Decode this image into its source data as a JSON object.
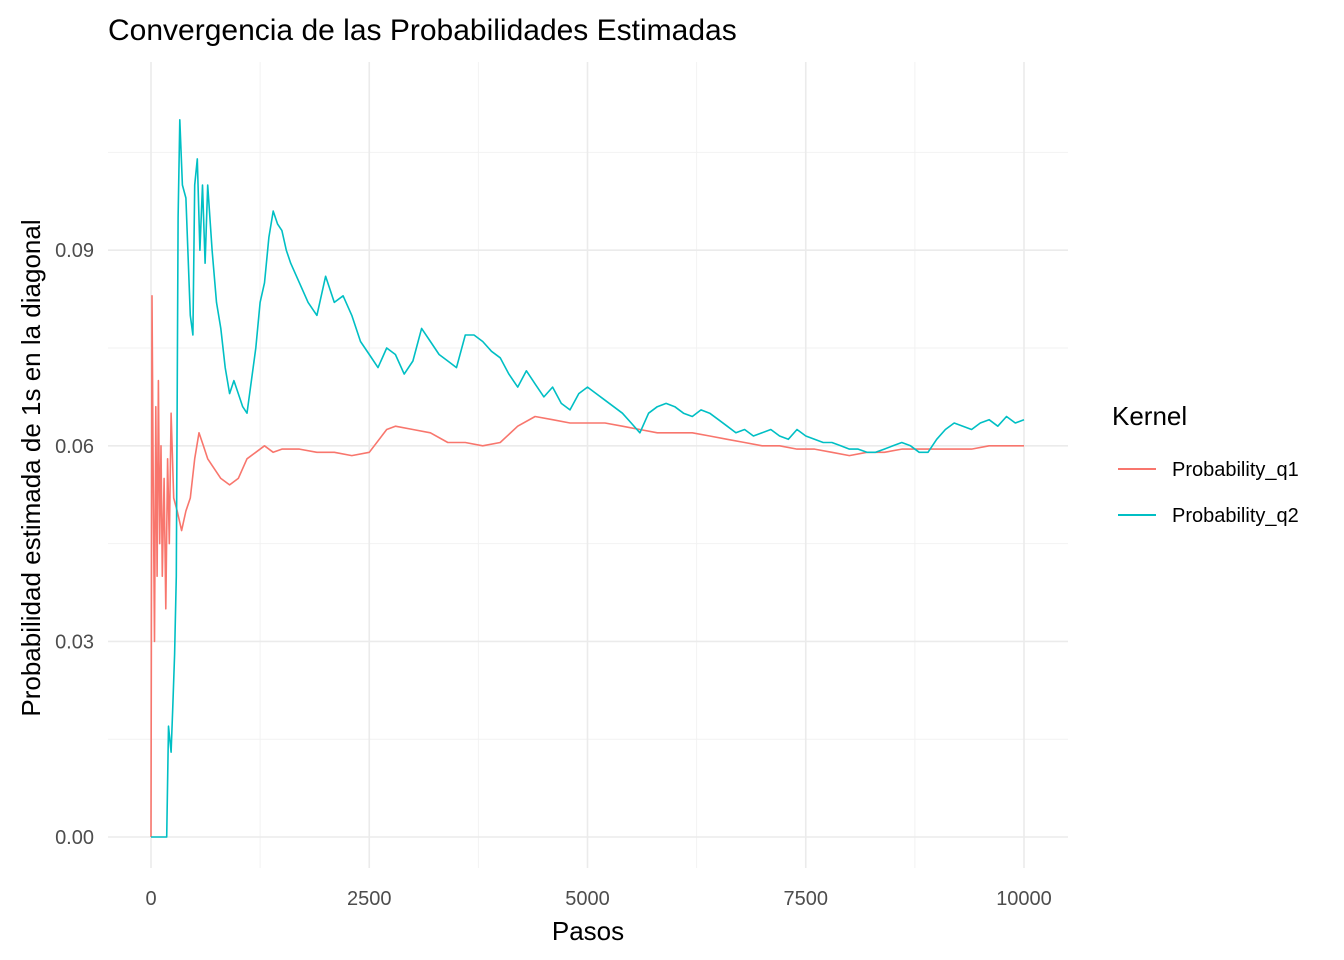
{
  "chart_data": {
    "type": "line",
    "title": "Convergencia de las Probabilidades Estimadas",
    "xlabel": "Pasos",
    "ylabel": "Probabilidad estimada de 1s en la diagonal",
    "xlim": [
      0,
      10000
    ],
    "ylim": [
      0,
      0.1
    ],
    "x_ticks": [
      0,
      2500,
      5000,
      7500,
      10000
    ],
    "x_tick_labels": [
      "0",
      "2500",
      "5000",
      "7500",
      "10000"
    ],
    "y_ticks": [
      0,
      0.03,
      0.06,
      0.09
    ],
    "y_tick_labels": [
      "0.00",
      "0.03",
      "0.06",
      "0.09"
    ],
    "grid": true,
    "legend": {
      "title": "Kernel",
      "position": "right"
    },
    "series": [
      {
        "name": "Probability_q1",
        "color": "#F8766D",
        "points": [
          [
            0,
            0
          ],
          [
            12,
            0.083
          ],
          [
            25,
            0.055
          ],
          [
            40,
            0.03
          ],
          [
            55,
            0.066
          ],
          [
            70,
            0.04
          ],
          [
            85,
            0.07
          ],
          [
            100,
            0.045
          ],
          [
            115,
            0.06
          ],
          [
            130,
            0.04
          ],
          [
            150,
            0.055
          ],
          [
            170,
            0.035
          ],
          [
            190,
            0.058
          ],
          [
            210,
            0.045
          ],
          [
            230,
            0.065
          ],
          [
            260,
            0.052
          ],
          [
            300,
            0.05
          ],
          [
            350,
            0.047
          ],
          [
            400,
            0.05
          ],
          [
            450,
            0.052
          ],
          [
            500,
            0.058
          ],
          [
            550,
            0.062
          ],
          [
            600,
            0.06
          ],
          [
            650,
            0.058
          ],
          [
            700,
            0.057
          ],
          [
            800,
            0.055
          ],
          [
            900,
            0.054
          ],
          [
            1000,
            0.055
          ],
          [
            1100,
            0.058
          ],
          [
            1200,
            0.059
          ],
          [
            1300,
            0.06
          ],
          [
            1400,
            0.059
          ],
          [
            1500,
            0.0595
          ],
          [
            1700,
            0.0595
          ],
          [
            1900,
            0.059
          ],
          [
            2100,
            0.059
          ],
          [
            2300,
            0.0585
          ],
          [
            2500,
            0.059
          ],
          [
            2700,
            0.0625
          ],
          [
            2800,
            0.063
          ],
          [
            3000,
            0.0625
          ],
          [
            3200,
            0.062
          ],
          [
            3400,
            0.0605
          ],
          [
            3600,
            0.0605
          ],
          [
            3800,
            0.06
          ],
          [
            4000,
            0.0605
          ],
          [
            4200,
            0.063
          ],
          [
            4400,
            0.0645
          ],
          [
            4600,
            0.064
          ],
          [
            4800,
            0.0635
          ],
          [
            5000,
            0.0635
          ],
          [
            5200,
            0.0635
          ],
          [
            5400,
            0.063
          ],
          [
            5600,
            0.0625
          ],
          [
            5800,
            0.062
          ],
          [
            6000,
            0.062
          ],
          [
            6200,
            0.062
          ],
          [
            6400,
            0.0615
          ],
          [
            6600,
            0.061
          ],
          [
            6800,
            0.0605
          ],
          [
            7000,
            0.06
          ],
          [
            7200,
            0.06
          ],
          [
            7400,
            0.0595
          ],
          [
            7600,
            0.0595
          ],
          [
            7800,
            0.059
          ],
          [
            8000,
            0.0585
          ],
          [
            8200,
            0.059
          ],
          [
            8400,
            0.059
          ],
          [
            8600,
            0.0595
          ],
          [
            8800,
            0.0595
          ],
          [
            9000,
            0.0595
          ],
          [
            9200,
            0.0595
          ],
          [
            9400,
            0.0595
          ],
          [
            9600,
            0.06
          ],
          [
            9800,
            0.06
          ],
          [
            10000,
            0.06
          ]
        ]
      },
      {
        "name": "Probability_q2",
        "color": "#00BFC4",
        "points": [
          [
            0,
            0
          ],
          [
            180,
            0
          ],
          [
            200,
            0.017
          ],
          [
            230,
            0.013
          ],
          [
            250,
            0.02
          ],
          [
            270,
            0.028
          ],
          [
            290,
            0.04
          ],
          [
            310,
            0.095
          ],
          [
            330,
            0.11
          ],
          [
            360,
            0.1
          ],
          [
            400,
            0.098
          ],
          [
            450,
            0.08
          ],
          [
            480,
            0.077
          ],
          [
            500,
            0.1
          ],
          [
            530,
            0.104
          ],
          [
            560,
            0.09
          ],
          [
            590,
            0.1
          ],
          [
            620,
            0.088
          ],
          [
            650,
            0.1
          ],
          [
            700,
            0.09
          ],
          [
            750,
            0.082
          ],
          [
            800,
            0.078
          ],
          [
            850,
            0.072
          ],
          [
            900,
            0.068
          ],
          [
            950,
            0.07
          ],
          [
            1000,
            0.068
          ],
          [
            1050,
            0.066
          ],
          [
            1100,
            0.065
          ],
          [
            1150,
            0.07
          ],
          [
            1200,
            0.075
          ],
          [
            1250,
            0.082
          ],
          [
            1300,
            0.085
          ],
          [
            1350,
            0.092
          ],
          [
            1400,
            0.096
          ],
          [
            1450,
            0.094
          ],
          [
            1500,
            0.093
          ],
          [
            1550,
            0.09
          ],
          [
            1600,
            0.088
          ],
          [
            1700,
            0.085
          ],
          [
            1800,
            0.082
          ],
          [
            1900,
            0.08
          ],
          [
            2000,
            0.086
          ],
          [
            2100,
            0.082
          ],
          [
            2200,
            0.083
          ],
          [
            2300,
            0.08
          ],
          [
            2400,
            0.076
          ],
          [
            2500,
            0.074
          ],
          [
            2600,
            0.072
          ],
          [
            2700,
            0.075
          ],
          [
            2800,
            0.074
          ],
          [
            2900,
            0.071
          ],
          [
            3000,
            0.073
          ],
          [
            3100,
            0.078
          ],
          [
            3200,
            0.076
          ],
          [
            3300,
            0.074
          ],
          [
            3400,
            0.073
          ],
          [
            3500,
            0.072
          ],
          [
            3600,
            0.077
          ],
          [
            3700,
            0.077
          ],
          [
            3800,
            0.076
          ],
          [
            3900,
            0.0745
          ],
          [
            4000,
            0.0735
          ],
          [
            4100,
            0.071
          ],
          [
            4200,
            0.069
          ],
          [
            4300,
            0.0715
          ],
          [
            4400,
            0.0695
          ],
          [
            4500,
            0.0675
          ],
          [
            4600,
            0.069
          ],
          [
            4700,
            0.0665
          ],
          [
            4800,
            0.0655
          ],
          [
            4900,
            0.068
          ],
          [
            5000,
            0.069
          ],
          [
            5100,
            0.068
          ],
          [
            5200,
            0.067
          ],
          [
            5300,
            0.066
          ],
          [
            5400,
            0.065
          ],
          [
            5500,
            0.0635
          ],
          [
            5600,
            0.062
          ],
          [
            5700,
            0.065
          ],
          [
            5800,
            0.066
          ],
          [
            5900,
            0.0665
          ],
          [
            6000,
            0.066
          ],
          [
            6100,
            0.065
          ],
          [
            6200,
            0.0645
          ],
          [
            6300,
            0.0655
          ],
          [
            6400,
            0.065
          ],
          [
            6500,
            0.064
          ],
          [
            6600,
            0.063
          ],
          [
            6700,
            0.062
          ],
          [
            6800,
            0.0625
          ],
          [
            6900,
            0.0615
          ],
          [
            7000,
            0.062
          ],
          [
            7100,
            0.0625
          ],
          [
            7200,
            0.0615
          ],
          [
            7300,
            0.061
          ],
          [
            7400,
            0.0625
          ],
          [
            7500,
            0.0615
          ],
          [
            7600,
            0.061
          ],
          [
            7700,
            0.0605
          ],
          [
            7800,
            0.0605
          ],
          [
            7900,
            0.06
          ],
          [
            8000,
            0.0595
          ],
          [
            8100,
            0.0595
          ],
          [
            8200,
            0.059
          ],
          [
            8300,
            0.059
          ],
          [
            8400,
            0.0595
          ],
          [
            8500,
            0.06
          ],
          [
            8600,
            0.0605
          ],
          [
            8700,
            0.06
          ],
          [
            8800,
            0.059
          ],
          [
            8900,
            0.059
          ],
          [
            9000,
            0.061
          ],
          [
            9100,
            0.0625
          ],
          [
            9200,
            0.0635
          ],
          [
            9300,
            0.063
          ],
          [
            9400,
            0.0625
          ],
          [
            9500,
            0.0635
          ],
          [
            9600,
            0.064
          ],
          [
            9700,
            0.063
          ],
          [
            9800,
            0.0645
          ],
          [
            9900,
            0.0635
          ],
          [
            10000,
            0.064
          ]
        ]
      }
    ]
  }
}
